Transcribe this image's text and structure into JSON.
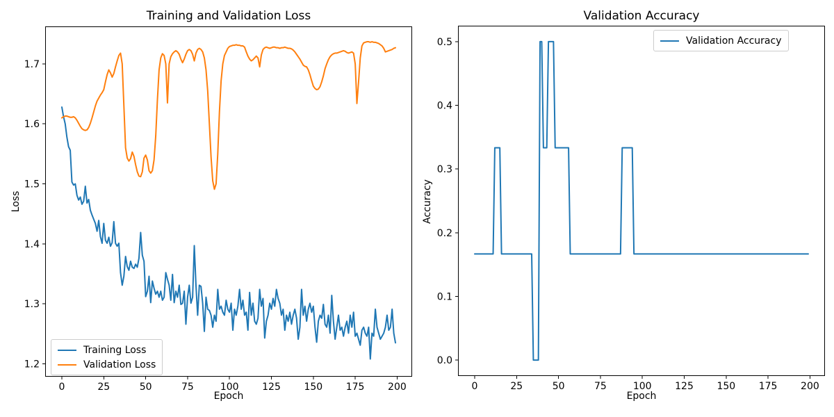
{
  "figure": {
    "background": "#ffffff"
  },
  "colors": {
    "training_loss": "#1f77b4",
    "validation_loss": "#ff7f0e",
    "validation_accuracy": "#1f77b4",
    "text": "#000000",
    "spine": "#000000",
    "legend_border": "#cccccc"
  },
  "chart_data": [
    {
      "id": "loss",
      "type": "line",
      "title": "Training and Validation Loss",
      "xlabel": "Epoch",
      "ylabel": "Loss",
      "grid": false,
      "xlim": [
        -9.95,
        208.95
      ],
      "ylim": [
        1.1785,
        1.7625
      ],
      "xticks": [
        0,
        25,
        50,
        75,
        100,
        125,
        150,
        175,
        200
      ],
      "xtick_labels": [
        "0",
        "25",
        "50",
        "75",
        "100",
        "125",
        "150",
        "175",
        "200"
      ],
      "yticks": [
        1.2,
        1.3,
        1.4,
        1.5,
        1.6,
        1.7
      ],
      "ytick_labels": [
        "1.2",
        "1.3",
        "1.4",
        "1.5",
        "1.6",
        "1.7"
      ],
      "x_start": 0,
      "x_step": 1,
      "legend": {
        "position": "lower left",
        "items": [
          {
            "label": "Training Loss",
            "color": "#1f77b4"
          },
          {
            "label": "Validation Loss",
            "color": "#ff7f0e"
          }
        ]
      },
      "series": [
        {
          "name": "Training Loss",
          "color": "#1f77b4",
          "values": [
            1.628,
            1.612,
            1.6,
            1.578,
            1.562,
            1.556,
            1.503,
            1.498,
            1.5,
            1.481,
            1.473,
            1.478,
            1.466,
            1.471,
            1.496,
            1.468,
            1.474,
            1.456,
            1.448,
            1.441,
            1.434,
            1.421,
            1.439,
            1.412,
            1.401,
            1.434,
            1.406,
            1.401,
            1.411,
            1.396,
            1.402,
            1.437,
            1.401,
            1.396,
            1.401,
            1.352,
            1.331,
            1.346,
            1.379,
            1.362,
            1.356,
            1.371,
            1.361,
            1.359,
            1.366,
            1.361,
            1.376,
            1.419,
            1.381,
            1.371,
            1.312,
            1.321,
            1.346,
            1.302,
            1.338,
            1.326,
            1.316,
            1.321,
            1.311,
            1.321,
            1.306,
            1.311,
            1.352,
            1.341,
            1.331,
            1.306,
            1.349,
            1.302,
            1.321,
            1.311,
            1.331,
            1.299,
            1.301,
            1.321,
            1.266,
            1.311,
            1.331,
            1.301,
            1.311,
            1.397,
            1.331,
            1.281,
            1.331,
            1.329,
            1.301,
            1.254,
            1.311,
            1.291,
            1.289,
            1.281,
            1.261,
            1.281,
            1.271,
            1.324,
            1.291,
            1.296,
            1.286,
            1.281,
            1.306,
            1.291,
            1.286,
            1.301,
            1.256,
            1.291,
            1.281,
            1.296,
            1.324,
            1.291,
            1.306,
            1.281,
            1.286,
            1.256,
            1.319,
            1.281,
            1.301,
            1.271,
            1.266,
            1.276,
            1.324,
            1.296,
            1.309,
            1.243,
            1.271,
            1.281,
            1.301,
            1.291,
            1.309,
            1.296,
            1.324,
            1.309,
            1.301,
            1.281,
            1.291,
            1.256,
            1.281,
            1.271,
            1.286,
            1.266,
            1.281,
            1.291,
            1.276,
            1.241,
            1.261,
            1.324,
            1.281,
            1.296,
            1.271,
            1.291,
            1.301,
            1.286,
            1.296,
            1.261,
            1.236,
            1.271,
            1.281,
            1.276,
            1.299,
            1.266,
            1.261,
            1.281,
            1.251,
            1.314,
            1.271,
            1.241,
            1.261,
            1.281,
            1.256,
            1.261,
            1.246,
            1.261,
            1.271,
            1.251,
            1.281,
            1.261,
            1.286,
            1.246,
            1.251,
            1.241,
            1.231,
            1.256,
            1.261,
            1.251,
            1.246,
            1.261,
            1.208,
            1.251,
            1.246,
            1.291,
            1.261,
            1.251,
            1.241,
            1.246,
            1.251,
            1.261,
            1.281,
            1.256,
            1.261,
            1.291,
            1.251,
            1.235
          ]
        },
        {
          "name": "Validation Loss",
          "color": "#ff7f0e",
          "values": [
            1.61,
            1.612,
            1.613,
            1.613,
            1.612,
            1.611,
            1.611,
            1.612,
            1.61,
            1.606,
            1.601,
            1.596,
            1.592,
            1.59,
            1.589,
            1.59,
            1.594,
            1.601,
            1.61,
            1.62,
            1.63,
            1.638,
            1.643,
            1.648,
            1.652,
            1.657,
            1.67,
            1.682,
            1.69,
            1.685,
            1.678,
            1.684,
            1.695,
            1.705,
            1.714,
            1.718,
            1.7,
            1.63,
            1.56,
            1.543,
            1.538,
            1.542,
            1.553,
            1.546,
            1.532,
            1.52,
            1.513,
            1.512,
            1.52,
            1.543,
            1.548,
            1.54,
            1.522,
            1.518,
            1.522,
            1.54,
            1.58,
            1.64,
            1.69,
            1.71,
            1.717,
            1.714,
            1.7,
            1.635,
            1.7,
            1.712,
            1.717,
            1.72,
            1.722,
            1.72,
            1.716,
            1.708,
            1.702,
            1.708,
            1.716,
            1.722,
            1.724,
            1.722,
            1.716,
            1.705,
            1.718,
            1.724,
            1.726,
            1.724,
            1.72,
            1.71,
            1.69,
            1.655,
            1.6,
            1.545,
            1.505,
            1.491,
            1.5,
            1.55,
            1.62,
            1.672,
            1.7,
            1.714,
            1.72,
            1.726,
            1.729,
            1.73,
            1.731,
            1.731,
            1.732,
            1.731,
            1.731,
            1.73,
            1.73,
            1.728,
            1.72,
            1.713,
            1.708,
            1.705,
            1.707,
            1.71,
            1.713,
            1.71,
            1.695,
            1.715,
            1.724,
            1.727,
            1.728,
            1.727,
            1.726,
            1.727,
            1.728,
            1.728,
            1.727,
            1.727,
            1.726,
            1.727,
            1.727,
            1.728,
            1.727,
            1.726,
            1.726,
            1.725,
            1.723,
            1.72,
            1.716,
            1.712,
            1.708,
            1.703,
            1.698,
            1.696,
            1.695,
            1.69,
            1.682,
            1.672,
            1.663,
            1.659,
            1.657,
            1.658,
            1.662,
            1.67,
            1.68,
            1.692,
            1.7,
            1.707,
            1.712,
            1.715,
            1.717,
            1.718,
            1.718,
            1.719,
            1.72,
            1.721,
            1.722,
            1.721,
            1.719,
            1.718,
            1.719,
            1.72,
            1.718,
            1.7,
            1.634,
            1.67,
            1.71,
            1.73,
            1.735,
            1.736,
            1.737,
            1.737,
            1.736,
            1.737,
            1.736,
            1.736,
            1.735,
            1.734,
            1.732,
            1.73,
            1.726,
            1.72,
            1.721,
            1.722,
            1.723,
            1.724,
            1.726,
            1.727
          ]
        }
      ]
    },
    {
      "id": "accuracy",
      "type": "line",
      "title": "Validation Accuracy",
      "xlabel": "Epoch",
      "ylabel": "Accuracy",
      "grid": false,
      "xlim": [
        -9.95,
        208.95
      ],
      "ylim": [
        -0.025,
        0.525
      ],
      "xticks": [
        0,
        25,
        50,
        75,
        100,
        125,
        150,
        175,
        200
      ],
      "xtick_labels": [
        "0",
        "25",
        "50",
        "75",
        "100",
        "125",
        "150",
        "175",
        "200"
      ],
      "yticks": [
        0.0,
        0.1,
        0.2,
        0.3,
        0.4,
        0.5
      ],
      "ytick_labels": [
        "0.0",
        "0.1",
        "0.2",
        "0.3",
        "0.4",
        "0.5"
      ],
      "x_start": 0,
      "x_step": 1,
      "legend": {
        "position": "upper right",
        "items": [
          {
            "label": "Validation Accuracy",
            "color": "#1f77b4"
          }
        ]
      },
      "series": [
        {
          "name": "Validation Accuracy",
          "color": "#1f77b4",
          "values": [
            0.1667,
            0.1667,
            0.1667,
            0.1667,
            0.1667,
            0.1667,
            0.1667,
            0.1667,
            0.1667,
            0.1667,
            0.1667,
            0.1667,
            0.3333,
            0.3333,
            0.3333,
            0.3333,
            0.1667,
            0.1667,
            0.1667,
            0.1667,
            0.1667,
            0.1667,
            0.1667,
            0.1667,
            0.1667,
            0.1667,
            0.1667,
            0.1667,
            0.1667,
            0.1667,
            0.1667,
            0.1667,
            0.1667,
            0.1667,
            0.1667,
            0.0,
            0.0,
            0.0,
            0.0,
            0.5,
            0.5,
            0.3333,
            0.3333,
            0.3333,
            0.5,
            0.5,
            0.5,
            0.5,
            0.3333,
            0.3333,
            0.3333,
            0.3333,
            0.3333,
            0.3333,
            0.3333,
            0.3333,
            0.3333,
            0.1667,
            0.1667,
            0.1667,
            0.1667,
            0.1667,
            0.1667,
            0.1667,
            0.1667,
            0.1667,
            0.1667,
            0.1667,
            0.1667,
            0.1667,
            0.1667,
            0.1667,
            0.1667,
            0.1667,
            0.1667,
            0.1667,
            0.1667,
            0.1667,
            0.1667,
            0.1667,
            0.1667,
            0.1667,
            0.1667,
            0.1667,
            0.1667,
            0.1667,
            0.1667,
            0.1667,
            0.3333,
            0.3333,
            0.3333,
            0.3333,
            0.3333,
            0.3333,
            0.3333,
            0.1667,
            0.1667,
            0.1667,
            0.1667,
            0.1667,
            0.1667,
            0.1667,
            0.1667,
            0.1667,
            0.1667,
            0.1667,
            0.1667,
            0.1667,
            0.1667,
            0.1667,
            0.1667,
            0.1667,
            0.1667,
            0.1667,
            0.1667,
            0.1667,
            0.1667,
            0.1667,
            0.1667,
            0.1667,
            0.1667,
            0.1667,
            0.1667,
            0.1667,
            0.1667,
            0.1667,
            0.1667,
            0.1667,
            0.1667,
            0.1667,
            0.1667,
            0.1667,
            0.1667,
            0.1667,
            0.1667,
            0.1667,
            0.1667,
            0.1667,
            0.1667,
            0.1667,
            0.1667,
            0.1667,
            0.1667,
            0.1667,
            0.1667,
            0.1667,
            0.1667,
            0.1667,
            0.1667,
            0.1667,
            0.1667,
            0.1667,
            0.1667,
            0.1667,
            0.1667,
            0.1667,
            0.1667,
            0.1667,
            0.1667,
            0.1667,
            0.1667,
            0.1667,
            0.1667,
            0.1667,
            0.1667,
            0.1667,
            0.1667,
            0.1667,
            0.1667,
            0.1667,
            0.1667,
            0.1667,
            0.1667,
            0.1667,
            0.1667,
            0.1667,
            0.1667,
            0.1667,
            0.1667,
            0.1667,
            0.1667,
            0.1667,
            0.1667,
            0.1667,
            0.1667,
            0.1667,
            0.1667,
            0.1667,
            0.1667,
            0.1667,
            0.1667,
            0.1667,
            0.1667,
            0.1667,
            0.1667,
            0.1667,
            0.1667,
            0.1667,
            0.1667,
            0.1667
          ]
        }
      ]
    }
  ]
}
